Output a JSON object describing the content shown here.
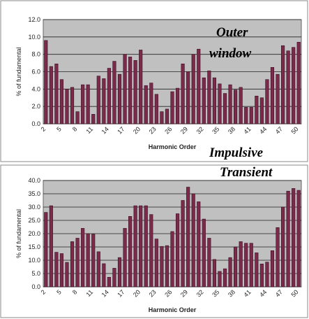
{
  "chart_data": [
    {
      "type": "bar",
      "y_label": "% of fundamental",
      "x_label": "Harmonic Order",
      "color": "#7b2a4a",
      "grid": true,
      "annotation": [
        "Outer",
        "window"
      ],
      "categories": [
        "2",
        null,
        null,
        "5",
        null,
        null,
        "8",
        null,
        null,
        "11",
        null,
        null,
        "14",
        null,
        null,
        "17",
        null,
        null,
        "20",
        null,
        null,
        "23",
        null,
        null,
        "26",
        null,
        null,
        "29",
        null,
        null,
        "32",
        null,
        null,
        "35",
        null,
        null,
        "38",
        null,
        null,
        "41",
        null,
        null,
        "44",
        null,
        null,
        "47",
        null,
        null,
        "50"
      ],
      "values": [
        9.6,
        6.6,
        6.9,
        5.1,
        4.0,
        4.2,
        1.4,
        4.5,
        4.5,
        1.1,
        5.5,
        5.2,
        6.4,
        7.2,
        5.7,
        8.0,
        7.7,
        7.3,
        8.5,
        4.4,
        4.7,
        3.4,
        1.4,
        1.7,
        3.7,
        4.1,
        6.9,
        6.0,
        8.0,
        8.6,
        5.3,
        6.1,
        5.3,
        4.6,
        3.5,
        4.5,
        3.9,
        4.2,
        1.9,
        1.9,
        3.2,
        3.0,
        5.1,
        6.5,
        5.7,
        9.0,
        8.4,
        8.8,
        9.4
      ],
      "ylim": [
        0,
        12
      ],
      "yticks": [
        {
          "value": 0,
          "label": "0.0"
        },
        {
          "value": 2,
          "label": "2.0"
        },
        {
          "value": 4,
          "label": "4.0"
        },
        {
          "value": 6,
          "label": "6.0"
        },
        {
          "value": 8,
          "label": "8.0"
        },
        {
          "value": 10,
          "label": "10.0"
        },
        {
          "value": 12,
          "label": "12.0"
        }
      ]
    },
    {
      "type": "bar",
      "y_label": "% of fundamental",
      "x_label": "Harmonic Order",
      "color": "#7b2a4a",
      "grid": true,
      "annotation": [
        "Impulsive",
        "Transient"
      ],
      "categories": [
        "2",
        null,
        null,
        "5",
        null,
        null,
        "8",
        null,
        null,
        "11",
        null,
        null,
        "14",
        null,
        null,
        "17",
        null,
        null,
        "20",
        null,
        null,
        "23",
        null,
        null,
        "26",
        null,
        null,
        "29",
        null,
        null,
        "32",
        null,
        null,
        "35",
        null,
        null,
        "38",
        null,
        null,
        "41",
        null,
        null,
        "44",
        null,
        null,
        "47",
        null,
        null,
        "50"
      ],
      "values": [
        28,
        30.5,
        13,
        12.5,
        9.2,
        17,
        18.3,
        22,
        20,
        19.8,
        13.2,
        8.7,
        3.6,
        7,
        11,
        22,
        26.5,
        30.5,
        30.5,
        30.5,
        27.2,
        18,
        15.2,
        15.5,
        20.8,
        27.5,
        32.5,
        37.5,
        35,
        32,
        25.5,
        18.3,
        10.3,
        5.8,
        6.8,
        11,
        15,
        17,
        16.4,
        16.4,
        12.8,
        8.6,
        9.3,
        13.6,
        22.3,
        30,
        36,
        37,
        36.3
      ],
      "ylim": [
        0,
        40
      ],
      "yticks": [
        {
          "value": 0,
          "label": "0.0"
        },
        {
          "value": 5,
          "label": "5.0"
        },
        {
          "value": 10,
          "label": "10.0"
        },
        {
          "value": 15,
          "label": "15.0"
        },
        {
          "value": 20,
          "label": "20.0"
        },
        {
          "value": 25,
          "label": "25.0"
        },
        {
          "value": 30,
          "label": "30.0"
        },
        {
          "value": 35,
          "label": "35.0"
        },
        {
          "value": 40,
          "label": "40.0"
        }
      ]
    }
  ]
}
